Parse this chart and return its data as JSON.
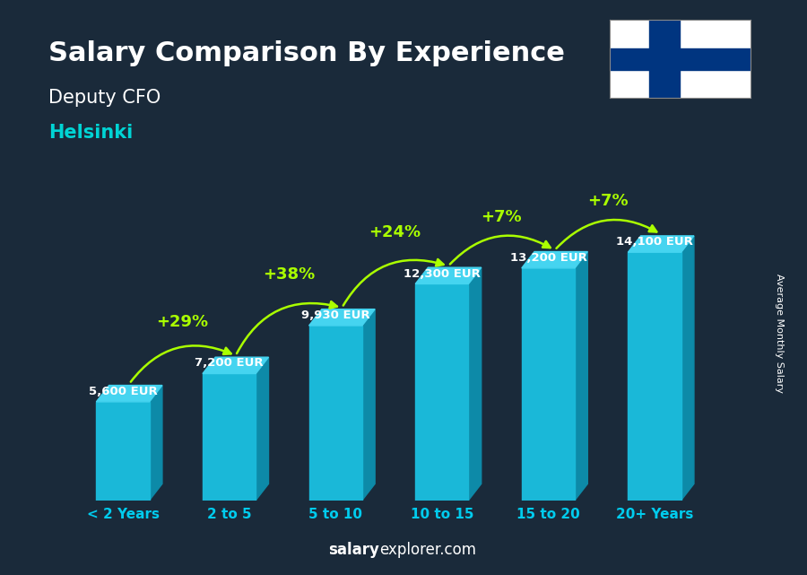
{
  "title": "Salary Comparison By Experience",
  "subtitle1": "Deputy CFO",
  "subtitle2": "Helsinki",
  "categories": [
    "< 2 Years",
    "2 to 5",
    "5 to 10",
    "10 to 15",
    "15 to 20",
    "20+ Years"
  ],
  "values": [
    5600,
    7200,
    9930,
    12300,
    13200,
    14100
  ],
  "labels": [
    "5,600 EUR",
    "7,200 EUR",
    "9,930 EUR",
    "12,300 EUR",
    "13,200 EUR",
    "14,100 EUR"
  ],
  "pct_labels": [
    "+29%",
    "+38%",
    "+24%",
    "+7%",
    "+7%"
  ],
  "bar_face_color": "#1ab8d8",
  "bar_side_color": "#0d8aa8",
  "bar_top_color": "#45d4f0",
  "title_color": "#ffffff",
  "subtitle1_color": "#ffffff",
  "subtitle2_color": "#00d4d4",
  "label_color": "#ffffff",
  "pct_color": "#aaff00",
  "xtick_color": "#00ccee",
  "ylabel_text": "Average Monthly Salary",
  "watermark_salary": "salary",
  "watermark_rest": "explorer.com",
  "watermark_color": "#ffffff",
  "ylim": [
    0,
    17000
  ],
  "bar_width": 0.5,
  "bg_color": "#1a2a3a",
  "flag_cross_color": "#003580"
}
